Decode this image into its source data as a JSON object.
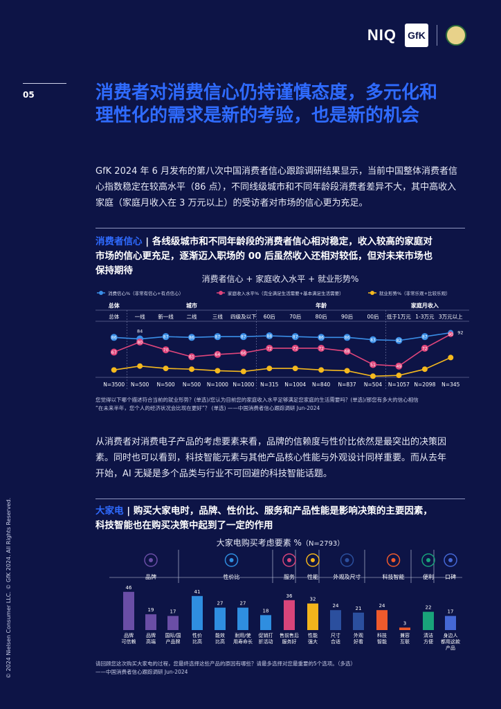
{
  "page_number": "05",
  "brand": {
    "niq": "NIQ",
    "gfk": "GfK"
  },
  "title_lines": [
    "消费者对消费信心仍持谨慎态度，多元化和",
    "理性化的需求是新的考验，也是新的机会"
  ],
  "intro": [
    "GfK 2024 年 6 月发布的第八次中国消费者信心跟踪调研结果显示，当前中国整体消费者信",
    "心指数稳定在较高水平（86 点），不同线级城市和不同年龄段消费者差异不大，其中高收入",
    "家庭（家庭月收入在 3 万元以上）的受访者对市场的信心更为充足。"
  ],
  "section1": {
    "label": "消费者信心",
    "sep": " | ",
    "heading_lines": [
      "各线级城市和不同年龄段的消费者信心相对稳定，收入较高的家庭对",
      "市场的信心更充足，逐渐迈入职场的 00 后虽然收入还相对较低，但对未来市场也",
      "保持期待"
    ],
    "chart_title": "消费者信心 + 家庭收入水平 + 就业形势%",
    "legend": [
      "消费信心%（非常有信心+有点信心）",
      "家庭收入水平%（完全满足生活需要+基本满足生活需要）",
      "就业形势%（非常乐观+比较乐观）"
    ],
    "groups": [
      "总体",
      "城市",
      "年龄",
      "家庭月收入"
    ],
    "note_lines": [
      "您觉得以下哪个描述符合当前的就业形势？(单选)/您认为目前您的家庭收入水平足够满足您家庭的生活需要吗？(单选)/那您有多大的信心相信",
      "“在未来半年，您个人的经济状况会比现在更好”？ (单选) ——中国消费者信心跟踪调研 Jun-2024"
    ]
  },
  "para2": [
    "从消费者对消费电子产品的考虑要素来看，品牌的信赖度与性价比依然是最突出的决策因",
    "素。同时也可以看到，科技智能元素与其他产品核心性能与外观设计同样重要。而从去年",
    "开始，AI 无疑是多个品类与行业不可回避的科技智能话题。"
  ],
  "section2": {
    "label": "大家电",
    "sep": " | ",
    "heading_lines": [
      "购买大家电时，品牌、性价比、服务和产品性能是影响决策的主要因素，",
      "科技智能也在购买决策中起到了一定的作用"
    ],
    "chart_title": "大家电购买考虑要素 %",
    "chart_n": "（N=2793）",
    "note_lines": [
      "请回顾您这次购买大家电的过程，您最终选择这些产品的原因有哪些？请最多选择对您最重要的5个选项。（多选）",
      "——中国消费者信心跟踪调研 Jun-2024"
    ]
  },
  "side_text": "© 2024 Nielsen Consumer LLC. © GfK 2024. All Rights Reserved.",
  "chart_data": [
    {
      "type": "line",
      "title": "消费者信心 + 家庭收入水平 + 就业形势%",
      "categories": [
        "总体",
        "一线",
        "新一线",
        "二线",
        "三线",
        "四级及以下",
        "60后",
        "70后",
        "80后",
        "90后",
        "00后",
        "低于1万元",
        "1-3万元",
        "3万元以上"
      ],
      "sample_sizes": [
        "N=3500",
        "N=500",
        "N=500",
        "N=500",
        "N=1000",
        "N=1000",
        "N=315",
        "N=1004",
        "N=840",
        "N=837",
        "N=504",
        "N=1057",
        "N=2098",
        "N=345"
      ],
      "series": [
        {
          "name": "消费信心%（非常有信心+有点信心）",
          "color": "#3a8fe8",
          "values": [
            86,
            84,
            87,
            86,
            87,
            87,
            88,
            87,
            86,
            86,
            83,
            82,
            87,
            92
          ],
          "labels": [
            "86",
            "84",
            "87",
            "86",
            "87",
            "87",
            "88",
            "87",
            "86",
            "86",
            "83",
            "82",
            "87",
            "92"
          ]
        },
        {
          "name": "家庭收入水平%（完全满足生活需要+基本满足生活需要）",
          "color": "#e0457b",
          "values": [
            67,
            80,
            70,
            61,
            64,
            66,
            72,
            72,
            72,
            68,
            51,
            49,
            72,
            90
          ],
          "labels": [
            "67",
            "80",
            "70",
            "61",
            "64",
            "66",
            "72",
            "72",
            "72",
            "68",
            "51",
            "49",
            "72",
            "90"
          ]
        },
        {
          "name": "就业形势%（非常乐观+比较乐观）",
          "color": "#f5b91e",
          "values": [
            44,
            49,
            46,
            45,
            43,
            42,
            46,
            46,
            44,
            43,
            36,
            37,
            45,
            60
          ],
          "labels": []
        }
      ]
    },
    {
      "type": "bar",
      "title": "大家电购买考虑要素 %",
      "groups": [
        {
          "name": "品牌",
          "icon": "award-icon",
          "color": "#6a4ea6"
        },
        {
          "name": "性价比",
          "icon": "sale-tag-icon",
          "color": "#2f8ee0"
        },
        {
          "name": "服务",
          "icon": "24h-service-icon",
          "color": "#d8457a"
        },
        {
          "name": "性能",
          "icon": "performance-icon",
          "color": "#f2b41c"
        },
        {
          "name": "外观及尺寸",
          "icon": "resize-icon",
          "color": "#2b4f9e"
        },
        {
          "name": "科技智能",
          "icon": "robot-icon",
          "color": "#ee5a2c"
        },
        {
          "name": "便利",
          "icon": "tools-icon",
          "color": "#19a37a"
        },
        {
          "name": "口碑",
          "icon": "users-star-icon",
          "color": "#4568d6"
        }
      ],
      "bars": [
        {
          "label": "品牌\n可信赖",
          "value": 46,
          "group": 0
        },
        {
          "label": "品牌\n高端",
          "value": 19,
          "group": 0
        },
        {
          "label": "国际/国\n产品牌",
          "value": 17,
          "group": 0
        },
        {
          "label": "性价\n比高",
          "value": 41,
          "group": 1
        },
        {
          "label": "能效\n比高",
          "value": 27,
          "group": 1
        },
        {
          "label": "耐用/使\n用寿命长",
          "value": 27,
          "group": 1
        },
        {
          "label": "促销打\n折活动",
          "value": 18,
          "group": 1
        },
        {
          "label": "售前售后\n服务好",
          "value": 36,
          "group": 2
        },
        {
          "label": "性能\n强大",
          "value": 32,
          "group": 3
        },
        {
          "label": "尺寸\n合适",
          "value": 24,
          "group": 4
        },
        {
          "label": "外观\n好看",
          "value": 21,
          "group": 4
        },
        {
          "label": "科技\n智能",
          "value": 24,
          "group": 5
        },
        {
          "label": "兼容\n互联",
          "value": 3,
          "group": 5
        },
        {
          "label": "清洁\n方便",
          "value": 22,
          "group": 6
        },
        {
          "label": "身边人\n都用这款\n产品",
          "value": 17,
          "group": 7
        }
      ]
    }
  ]
}
